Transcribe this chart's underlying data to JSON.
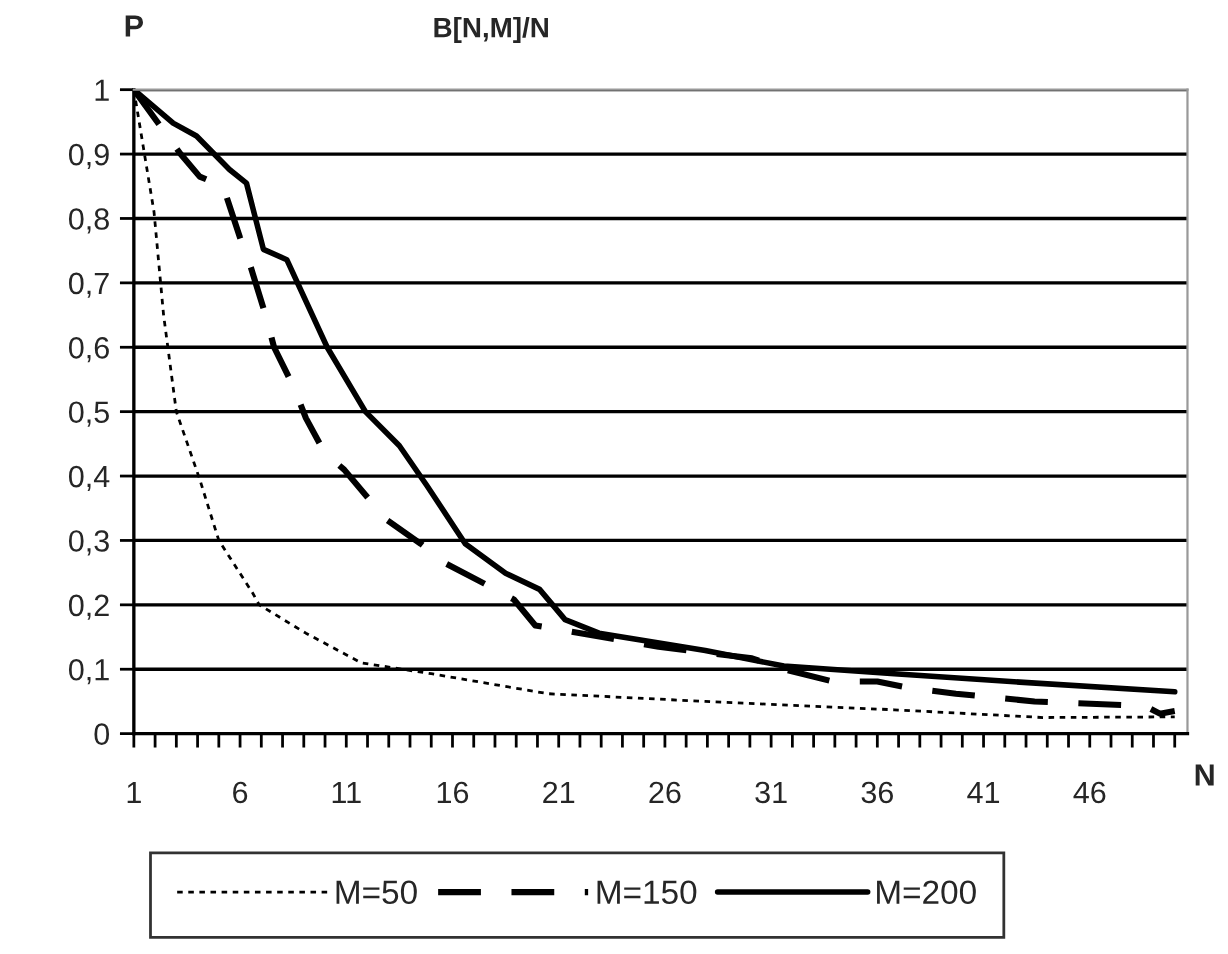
{
  "chart_data": {
    "type": "line",
    "title": "B[N,M]/N",
    "xlabel": "N",
    "ylabel": "P",
    "xlim": [
      1,
      50.6
    ],
    "ylim": [
      0,
      1
    ],
    "xticks": [
      1,
      {
        "value": 2,
        "label": null
      },
      {
        "value": 3,
        "label": null
      },
      {
        "value": 4,
        "label": null
      },
      {
        "value": 5,
        "label": null
      },
      6,
      {
        "value": 7,
        "label": null
      },
      {
        "value": 8,
        "label": null
      },
      {
        "value": 9,
        "label": null
      },
      {
        "value": 10,
        "label": null
      },
      11,
      {
        "value": 12,
        "label": null
      },
      {
        "value": 13,
        "label": null
      },
      {
        "value": 14,
        "label": null
      },
      {
        "value": 15,
        "label": null
      },
      16,
      {
        "value": 17,
        "label": null
      },
      {
        "value": 18,
        "label": null
      },
      {
        "value": 19,
        "label": null
      },
      {
        "value": 20,
        "label": null
      },
      21,
      {
        "value": 22,
        "label": null
      },
      {
        "value": 23,
        "label": null
      },
      {
        "value": 24,
        "label": null
      },
      {
        "value": 25,
        "label": null
      },
      26,
      {
        "value": 27,
        "label": null
      },
      {
        "value": 28,
        "label": null
      },
      {
        "value": 29,
        "label": null
      },
      {
        "value": 30,
        "label": null
      },
      31,
      {
        "value": 32,
        "label": null
      },
      {
        "value": 33,
        "label": null
      },
      {
        "value": 34,
        "label": null
      },
      {
        "value": 35,
        "label": null
      },
      36,
      {
        "value": 37,
        "label": null
      },
      {
        "value": 38,
        "label": null
      },
      {
        "value": 39,
        "label": null
      },
      {
        "value": 40,
        "label": null
      },
      41,
      {
        "value": 42,
        "label": null
      },
      {
        "value": 43,
        "label": null
      },
      {
        "value": 44,
        "label": null
      },
      {
        "value": 45,
        "label": null
      },
      46,
      {
        "value": 47,
        "label": null
      },
      {
        "value": 48,
        "label": null
      },
      {
        "value": 49,
        "label": null
      },
      {
        "value": 50,
        "label": null
      }
    ],
    "yticks": [
      0,
      {
        "value": 0.1,
        "label": "0,1"
      },
      {
        "value": 0.2,
        "label": "0,2"
      },
      {
        "value": 0.3,
        "label": "0,3"
      },
      {
        "value": 0.4,
        "label": "0,4"
      },
      {
        "value": 0.5,
        "label": "0,5"
      },
      {
        "value": 0.6,
        "label": "0,6"
      },
      {
        "value": 0.7,
        "label": "0,7"
      },
      {
        "value": 0.8,
        "label": "0,8"
      },
      {
        "value": 0.9,
        "label": "0,9"
      },
      1
    ],
    "grid": "y",
    "legend": "bottom",
    "marker": "none",
    "series": [
      {
        "name": "M=50",
        "color": "#000000",
        "line_style": "dotted",
        "x": [
          1,
          1.75,
          1.95,
          2.4,
          3.0,
          4.1,
          5.0,
          6.6,
          6.9,
          9.1,
          11.7,
          15,
          20.5,
          27.9,
          36.8,
          43.8,
          50
        ],
        "values": [
          1.0,
          0.85,
          0.81,
          0.65,
          0.5,
          0.395,
          0.3,
          0.218,
          0.2,
          0.156,
          0.11,
          0.093,
          0.062,
          0.05,
          0.037,
          0.025,
          0.026
        ]
      },
      {
        "name": "M=150",
        "color": "#000000",
        "line_style": "dashed",
        "x": [
          1,
          3.2,
          4.1,
          5.2,
          6.0,
          6.5,
          7.2,
          7.6,
          8.5,
          9.1,
          10.0,
          10.9,
          12.1,
          12.9,
          14.5,
          15.7,
          17.5,
          18.9,
          19.9,
          21.3,
          25.7,
          30.1,
          31.6,
          33.9,
          36,
          37.5,
          39.7,
          43.4,
          48.6,
          49.3,
          50
        ],
        "values": [
          1.0,
          0.9,
          0.865,
          0.85,
          0.77,
          0.725,
          0.65,
          0.6,
          0.54,
          0.49,
          0.435,
          0.41,
          0.363,
          0.332,
          0.295,
          0.264,
          0.233,
          0.208,
          0.168,
          0.16,
          0.135,
          0.117,
          0.1,
          0.081,
          0.081,
          0.071,
          0.062,
          0.05,
          0.043,
          0.031,
          0.035
        ]
      },
      {
        "name": "M=200",
        "color": "#000000",
        "line_style": "solid",
        "x": [
          1,
          2.85,
          3.95,
          5.5,
          6.3,
          7.1,
          8.2,
          10.1,
          11.9,
          13.5,
          14.8,
          16.6,
          18.5,
          20.1,
          21.3,
          22.9,
          27.9,
          31.6,
          36.8,
          42.7,
          50
        ],
        "values": [
          1.0,
          0.948,
          0.928,
          0.876,
          0.855,
          0.752,
          0.736,
          0.6,
          0.5,
          0.447,
          0.385,
          0.295,
          0.249,
          0.224,
          0.177,
          0.156,
          0.129,
          0.105,
          0.093,
          0.08,
          0.065
        ]
      }
    ]
  }
}
